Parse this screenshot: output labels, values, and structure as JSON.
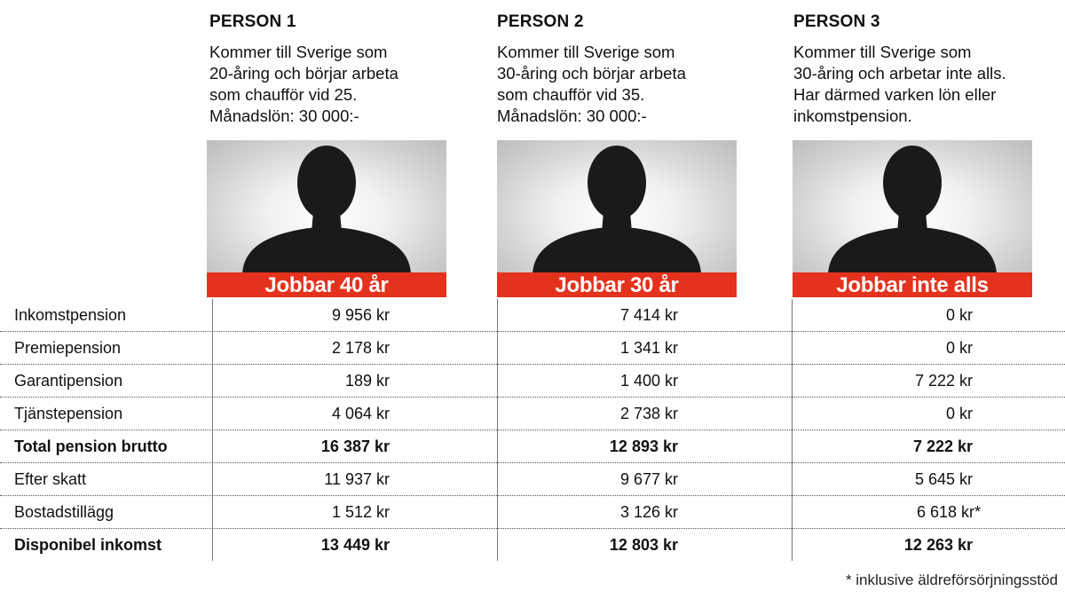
{
  "persons": [
    {
      "title": "PERSON 1",
      "desc_lines": [
        "Kommer till Sverige som",
        "20-åring och börjar arbeta",
        "som chaufför vid 25.",
        "Månadslön: 30 000:-"
      ],
      "banner": "Jobbar 40 år"
    },
    {
      "title": "PERSON 2",
      "desc_lines": [
        "Kommer till Sverige som",
        "30-åring och börjar arbeta",
        "som chaufför vid 35.",
        "Månadslön: 30 000:-"
      ],
      "banner": "Jobbar 30 år"
    },
    {
      "title": "PERSON 3",
      "desc_lines": [
        "Kommer till Sverige som",
        "30-åring och arbetar inte alls.",
        "Har därmed varken lön eller",
        "inkomstpension."
      ],
      "banner": "Jobbar inte alls"
    }
  ],
  "table": {
    "rows": [
      {
        "label": "Inkomstpension",
        "values": [
          "9 956 kr",
          "7 414 kr",
          "0 kr"
        ],
        "bold": false
      },
      {
        "label": "Premiepension",
        "values": [
          "2 178 kr",
          "1 341 kr",
          "0 kr"
        ],
        "bold": false
      },
      {
        "label": "Garantipension",
        "values": [
          "189 kr",
          "1 400 kr",
          "7 222 kr"
        ],
        "bold": false
      },
      {
        "label": "Tjänstepension",
        "values": [
          "4 064 kr",
          "2 738 kr",
          "0 kr"
        ],
        "bold": false
      },
      {
        "label": "Total pension brutto",
        "values": [
          "16 387 kr",
          "12 893 kr",
          "7 222 kr"
        ],
        "bold": true
      },
      {
        "label": "Efter skatt",
        "values": [
          "11 937 kr",
          "9 677 kr",
          "5 645 kr"
        ],
        "bold": false
      },
      {
        "label": "Bostadstillägg",
        "values": [
          "1 512 kr",
          "3 126 kr",
          "6 618 kr*"
        ],
        "bold": false
      },
      {
        "label": "Disponibel inkomst",
        "values": [
          "13 449 kr",
          "12 803 kr",
          "12 263 kr"
        ],
        "bold": true
      }
    ]
  },
  "footnote": "* inklusive äldreförsörjningsstöd",
  "colors": {
    "banner": "#e5321c",
    "silhouette": "#1a1a1a"
  },
  "icons": {
    "photo": "person-silhouette-icon"
  }
}
